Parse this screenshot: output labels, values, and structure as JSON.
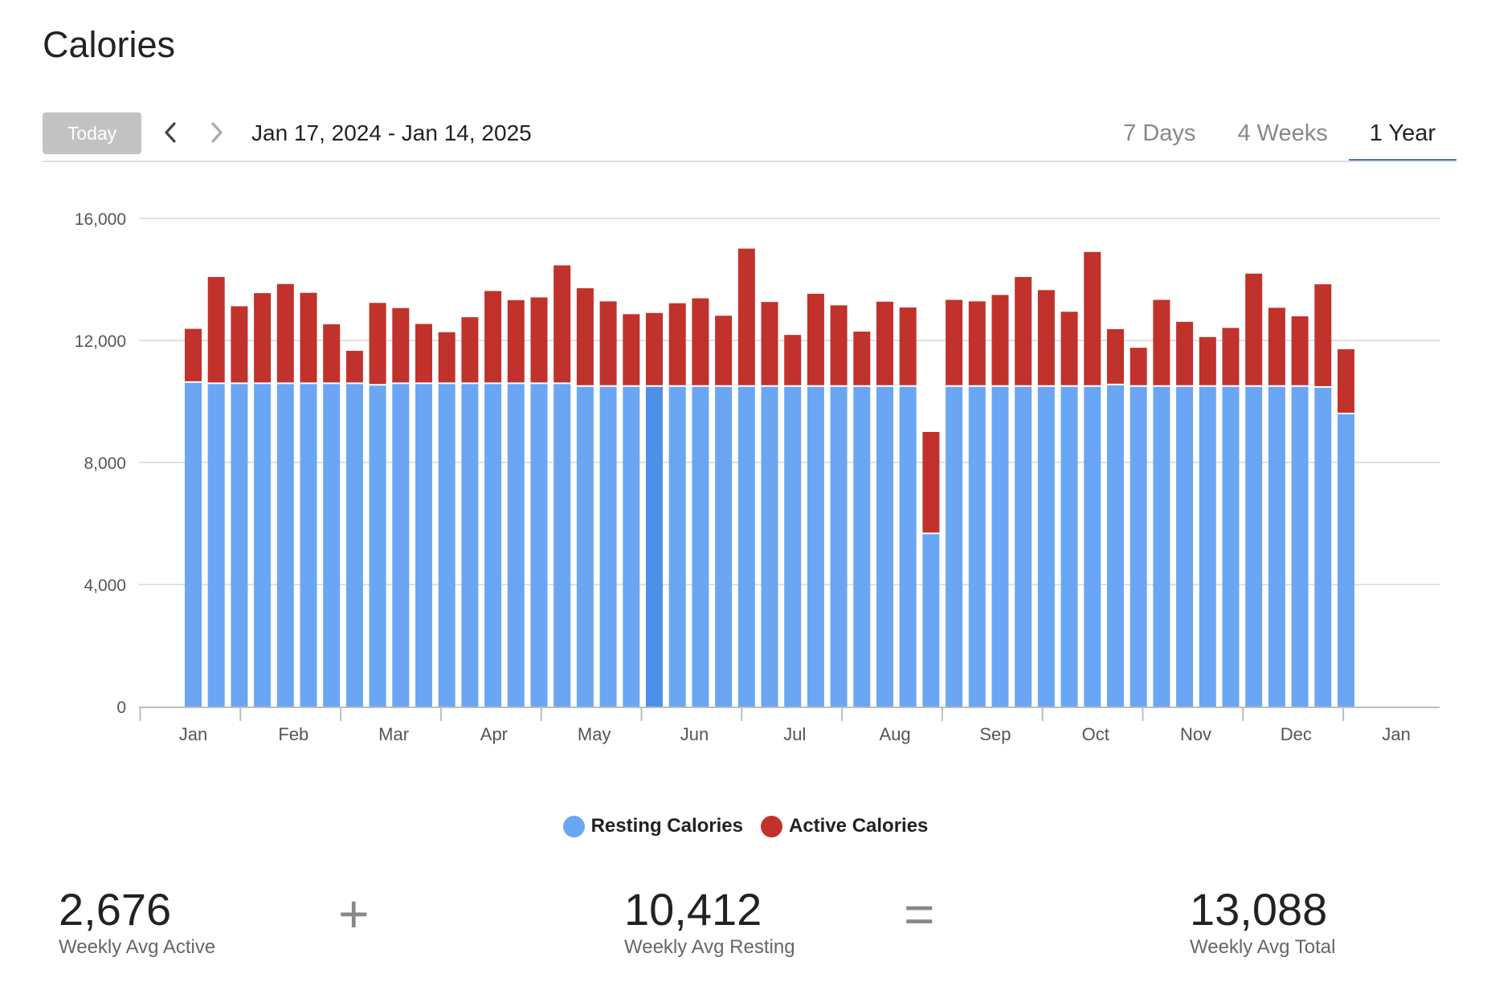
{
  "page": {
    "title": "Calories"
  },
  "toolbar": {
    "today_label": "Today",
    "date_range": "Jan 17, 2024 - Jan 14, 2025",
    "tabs": [
      {
        "label": "7 Days",
        "active": false
      },
      {
        "label": "4 Weeks",
        "active": false
      },
      {
        "label": "1 Year",
        "active": true
      }
    ],
    "prev_icon": "chevron-left-icon",
    "next_icon": "chevron-right-icon"
  },
  "colors": {
    "resting": "#6aa6f4",
    "active": "#c0322b",
    "highlight": "#4e90e8",
    "accent": "#4a78c9"
  },
  "chart_data": {
    "type": "bar",
    "stacked": true,
    "ylim": [
      0,
      16000
    ],
    "yticks": [
      "0",
      "4,000",
      "8,000",
      "12,000",
      "16,000"
    ],
    "xticks": [
      "Jan",
      "Feb",
      "Mar",
      "Apr",
      "May",
      "Jun",
      "Jul",
      "Aug",
      "Sep",
      "Oct",
      "Nov",
      "Dec",
      "Jan"
    ],
    "grid": true,
    "legend_position": "bottom",
    "highlighted_index": 20,
    "series": [
      {
        "name": "Resting Calories",
        "values": [
          10610,
          10570,
          10570,
          10570,
          10570,
          10570,
          10570,
          10570,
          10520,
          10570,
          10570,
          10570,
          10570,
          10570,
          10570,
          10570,
          10570,
          10480,
          10480,
          10480,
          10480,
          10480,
          10480,
          10480,
          10480,
          10480,
          10480,
          10480,
          10480,
          10480,
          10480,
          10480,
          5650,
          10480,
          10480,
          10480,
          10480,
          10480,
          10480,
          10480,
          10530,
          10480,
          10480,
          10480,
          10480,
          10480,
          10480,
          10480,
          10480,
          10450,
          9580
        ]
      },
      {
        "name": "Active Calories",
        "values": [
          1770,
          3510,
          2550,
          2980,
          3280,
          2990,
          1960,
          1090,
          2710,
          2490,
          1970,
          1700,
          2190,
          3050,
          2750,
          2840,
          3890,
          3230,
          2800,
          2380,
          2420,
          2740,
          2900,
          2330,
          4530,
          2780,
          1700,
          3050,
          2670,
          1810,
          2790,
          2600,
          3350,
          2850,
          2800,
          3010,
          3600,
          3170,
          2460,
          4420,
          1840,
          1280,
          2850,
          2130,
          1630,
          1930,
          3710,
          2590,
          2310,
          3390,
          2130
        ]
      }
    ]
  },
  "legend": {
    "resting_label": "Resting Calories",
    "active_label": "Active Calories"
  },
  "stats": {
    "active_value": "2,676",
    "active_label": "Weekly Avg Active",
    "plus": "+",
    "resting_value": "10,412",
    "resting_label": "Weekly Avg Resting",
    "equals": "=",
    "total_value": "13,088",
    "total_label": "Weekly Avg Total"
  }
}
